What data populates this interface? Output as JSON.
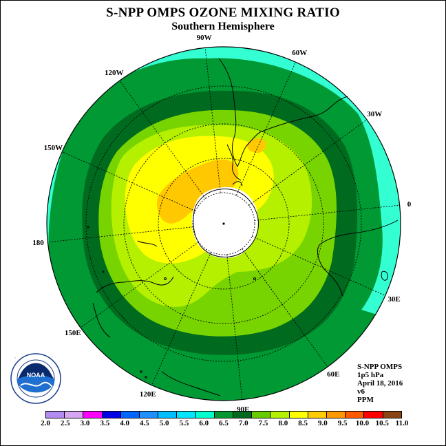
{
  "title": "S-NPP OMPS OZONE MIXING RATIO",
  "subtitle": "Southern Hemisphere",
  "longitude_labels": [
    "90W",
    "60W",
    "30W",
    "0",
    "30E",
    "60E",
    "90E",
    "120E",
    "150E",
    "180",
    "150W",
    "120W"
  ],
  "info": {
    "instrument": "S-NPP OMPS",
    "pressure": "1p5 hPa",
    "date": "April 18, 2016",
    "version": "v6",
    "units": "PPM"
  },
  "colorbar": {
    "ticks": [
      "2.0",
      "2.5",
      "3.0",
      "3.5",
      "4.0",
      "4.5",
      "5.0",
      "5.5",
      "6.0",
      "6.5",
      "7.0",
      "7.5",
      "8.0",
      "8.5",
      "9.0",
      "9.5",
      "10.0",
      "10.5",
      "11.0"
    ],
    "colors": [
      "#b28cf0",
      "#d6a6f2",
      "#ff00ff",
      "#0000e6",
      "#0066ff",
      "#1e90ff",
      "#00bfff",
      "#00e6ff",
      "#00ffcc",
      "#009933",
      "#006b1f",
      "#66cc00",
      "#b4f000",
      "#ffff00",
      "#ffcc00",
      "#ff9900",
      "#ff5a00",
      "#ff0000",
      "#8b4513"
    ]
  },
  "map_colors": {
    "outer": "#33ffd2",
    "band_65": "#009933",
    "band_70": "#006b1f",
    "band_75": "#77d400",
    "band_80": "#b4f000",
    "band_85": "#ffff00",
    "band_90": "#ffc800",
    "polar_night": "#ffffff"
  },
  "logo": {
    "name": "NOAA",
    "ring_text": "NATIONAL OCEANIC AND ATMOSPHERIC ADMINISTRATION · U.S. DEPARTMENT OF COMMERCE"
  }
}
